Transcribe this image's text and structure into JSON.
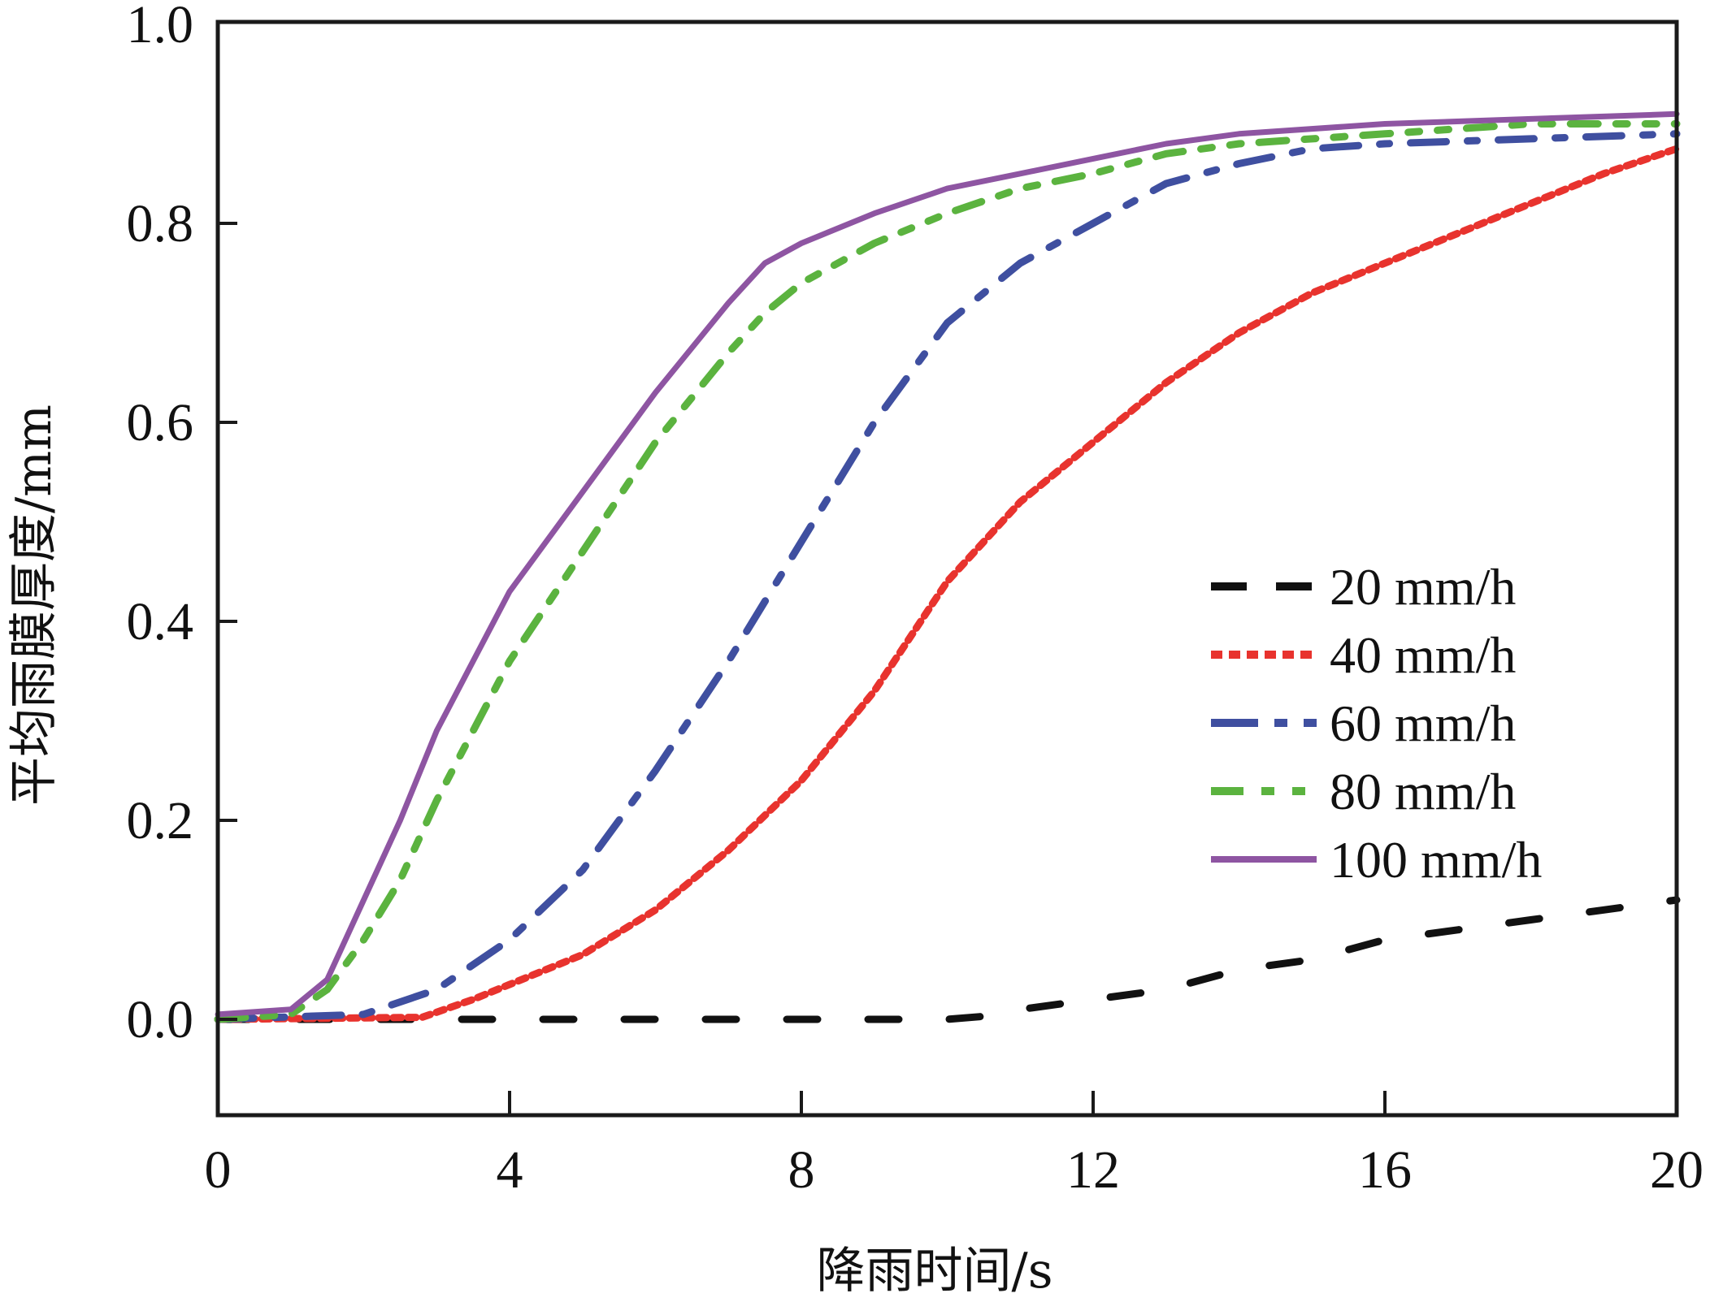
{
  "chart_data": {
    "type": "line",
    "title": "",
    "xlabel": "降雨时间/s",
    "ylabel": "平均雨膜厚度/mm",
    "xlim": [
      0,
      20
    ],
    "ylim": [
      -0.094,
      1.0
    ],
    "xticks": [
      0,
      4,
      8,
      12,
      16,
      20
    ],
    "xtick_labels": [
      "0",
      "4",
      "8",
      "12",
      "16",
      "20"
    ],
    "yticks": [
      0.0,
      0.2,
      0.4,
      0.6,
      0.8,
      1.0
    ],
    "ytick_labels": [
      "0.0",
      "0.2",
      "0.4",
      "0.6",
      "0.8",
      "1.0"
    ],
    "grid": false,
    "legend_position": "right",
    "series": [
      {
        "name": "20 mm/h",
        "color": "#111111",
        "style": "dashed",
        "x": [
          0,
          2,
          4,
          6,
          8,
          10,
          10.5,
          11,
          12,
          13,
          14,
          15,
          16,
          17,
          18,
          19,
          20
        ],
        "y": [
          0,
          0,
          0,
          0,
          0,
          0,
          0.003,
          0.01,
          0.02,
          0.03,
          0.05,
          0.06,
          0.08,
          0.09,
          0.1,
          0.11,
          0.12
        ]
      },
      {
        "name": "40 mm/h",
        "color": "#e8332e",
        "style": "dotted",
        "x": [
          0,
          2.8,
          3.5,
          4,
          5,
          6,
          7,
          8,
          9,
          10,
          11,
          12,
          13,
          14,
          15,
          16,
          17,
          18,
          19,
          20
        ],
        "y": [
          0,
          0.002,
          0.02,
          0.035,
          0.065,
          0.11,
          0.17,
          0.24,
          0.33,
          0.44,
          0.52,
          0.58,
          0.64,
          0.69,
          0.73,
          0.76,
          0.79,
          0.82,
          0.85,
          0.875
        ]
      },
      {
        "name": "60 mm/h",
        "color": "#3f4fa0",
        "style": "dashdot",
        "x": [
          0,
          2,
          3,
          4,
          5,
          6,
          7,
          8,
          9,
          10,
          11,
          12,
          13,
          14,
          15,
          16,
          18,
          20
        ],
        "y": [
          0,
          0.005,
          0.03,
          0.08,
          0.15,
          0.25,
          0.36,
          0.48,
          0.6,
          0.7,
          0.76,
          0.8,
          0.84,
          0.86,
          0.875,
          0.88,
          0.885,
          0.89
        ]
      },
      {
        "name": "80 mm/h",
        "color": "#5bb33f",
        "style": "dashdotdot",
        "x": [
          0,
          1,
          1.5,
          2,
          2.5,
          3,
          4,
          5,
          6,
          7,
          7.5,
          8,
          9,
          10,
          11,
          12,
          13,
          14,
          16,
          18,
          20
        ],
        "y": [
          0,
          0.005,
          0.03,
          0.08,
          0.14,
          0.22,
          0.36,
          0.47,
          0.58,
          0.67,
          0.71,
          0.74,
          0.78,
          0.81,
          0.835,
          0.85,
          0.87,
          0.88,
          0.89,
          0.9,
          0.9
        ]
      },
      {
        "name": "100 mm/h",
        "color": "#8e55a2",
        "style": "solid",
        "x": [
          0,
          1,
          1.5,
          2,
          2.5,
          3,
          3.5,
          4,
          5,
          6,
          7,
          7.5,
          8,
          9,
          10,
          11,
          12,
          13,
          14,
          16,
          18,
          20
        ],
        "y": [
          0.005,
          0.01,
          0.04,
          0.12,
          0.2,
          0.29,
          0.36,
          0.43,
          0.53,
          0.63,
          0.72,
          0.76,
          0.78,
          0.81,
          0.835,
          0.85,
          0.865,
          0.88,
          0.89,
          0.9,
          0.905,
          0.91
        ]
      }
    ]
  }
}
